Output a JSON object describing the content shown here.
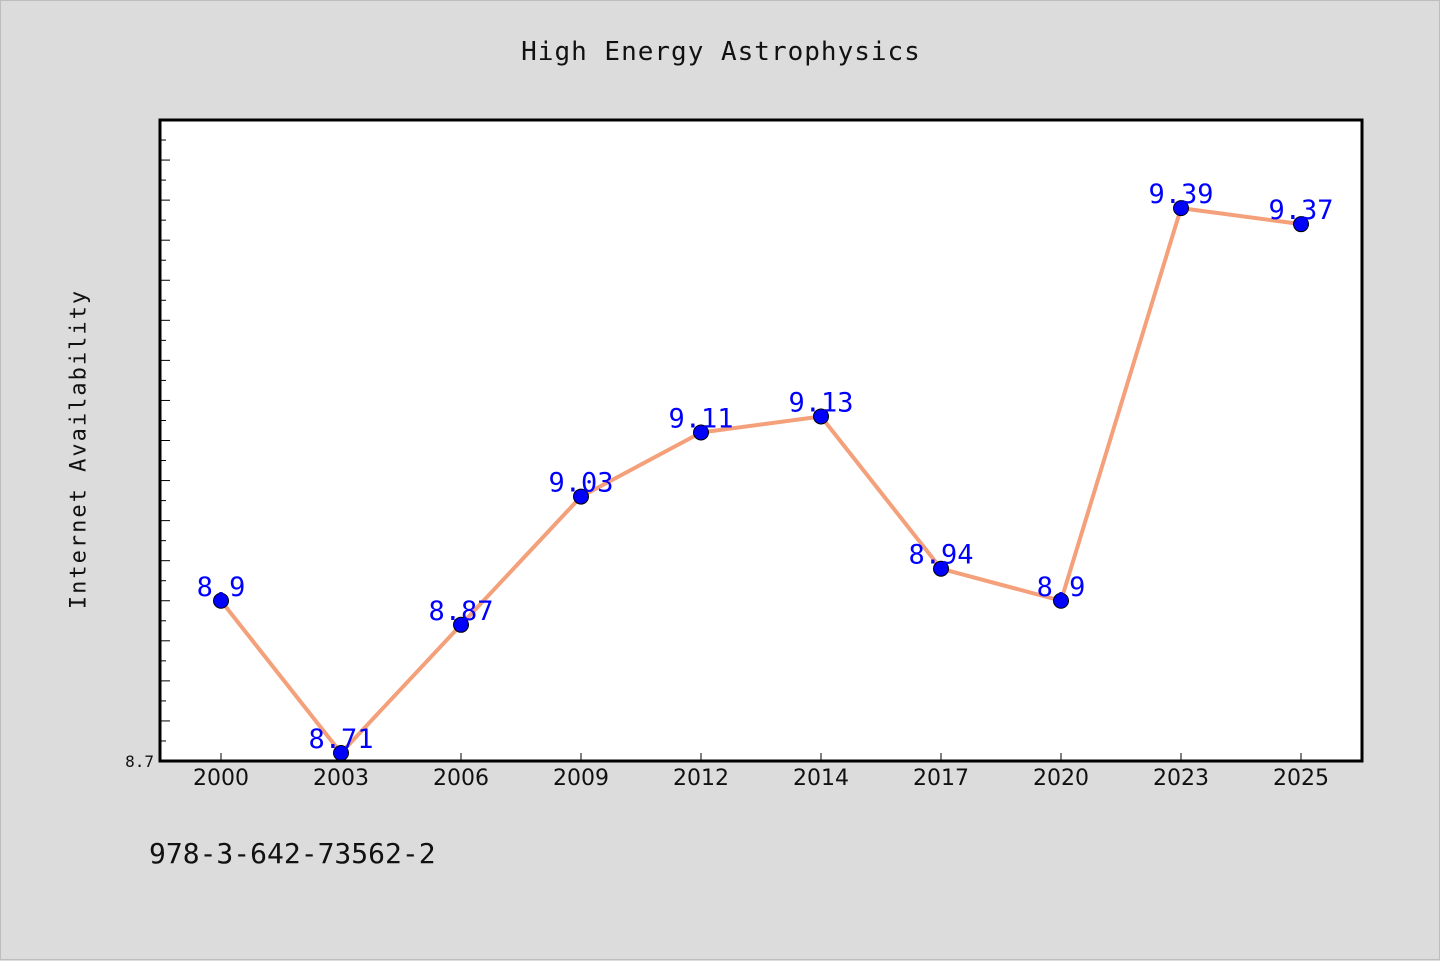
{
  "chart_data": {
    "type": "line",
    "title": "High Energy Astrophysics",
    "xlabel": "",
    "ylabel": "Internet Availability",
    "categories": [
      "2000",
      "2003",
      "2006",
      "2009",
      "2012",
      "2014",
      "2017",
      "2020",
      "2023",
      "2025"
    ],
    "series": [
      {
        "values": [
          8.9,
          8.71,
          8.87,
          9.03,
          9.11,
          9.13,
          8.94,
          8.9,
          9.39,
          9.37
        ]
      }
    ],
    "data_labels": [
      "8.9",
      "8.71",
      "8.87",
      "9.03",
      "9.11",
      "9.13",
      "8.94",
      "8.9",
      "9.39",
      "9.37"
    ],
    "y_tick_labels": [
      "8.7"
    ],
    "ylim": [
      8.7,
      9.5
    ],
    "grid": false,
    "line_color": "#f4a07a",
    "marker_color": "#0000ff",
    "label_color": "#0000ff"
  },
  "footer": {
    "isbn": "978-3-642-73562-2"
  }
}
